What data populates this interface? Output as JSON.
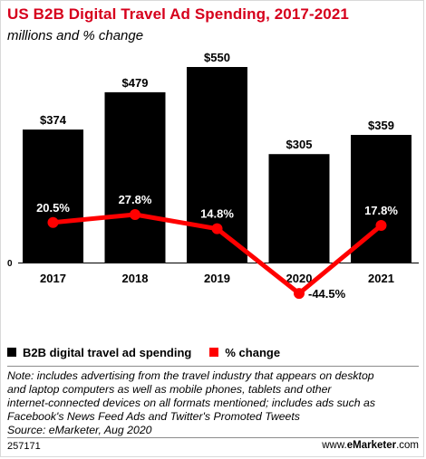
{
  "header": {
    "title": "US B2B Digital Travel Ad Spending, 2017-2021",
    "subtitle": "millions and % change"
  },
  "chart_data": {
    "type": "bar",
    "categories": [
      "2017",
      "2018",
      "2019",
      "2020",
      "2021"
    ],
    "series": [
      {
        "name": "B2B digital travel ad spending",
        "type": "bar",
        "values": [
          374,
          479,
          550,
          305,
          359
        ],
        "labels": [
          "$374",
          "$479",
          "$550",
          "$305",
          "$359"
        ],
        "color": "#000000"
      },
      {
        "name": "% change",
        "type": "line",
        "values": [
          20.5,
          27.8,
          14.8,
          -44.5,
          17.8
        ],
        "labels": [
          "20.5%",
          "27.8%",
          "14.8%",
          "-44.5%",
          "17.8%"
        ],
        "color": "#ff0000"
      }
    ],
    "zero_label": "0",
    "ylim": [
      0,
      550
    ],
    "grid": false,
    "legend": "bottom"
  },
  "legend": {
    "items": [
      {
        "label": "B2B digital travel ad spending",
        "color": "#000000"
      },
      {
        "label": "% change",
        "color": "#ff0000"
      }
    ]
  },
  "footer": {
    "note_lines": [
      "Note: includes advertising from the travel industry that appears on desktop",
      "and laptop computers as well as mobile phones, tablets and other",
      "internet-connected devices on all formats mentioned; includes ads such as",
      "Facebook's News Feed Ads and Twitter's Promoted Tweets"
    ],
    "source": "Source: eMarketer, Aug 2020",
    "chart_id": "257171",
    "brand_prefix": "www.",
    "brand_name": "eMarketer",
    "brand_suffix": ".com"
  }
}
